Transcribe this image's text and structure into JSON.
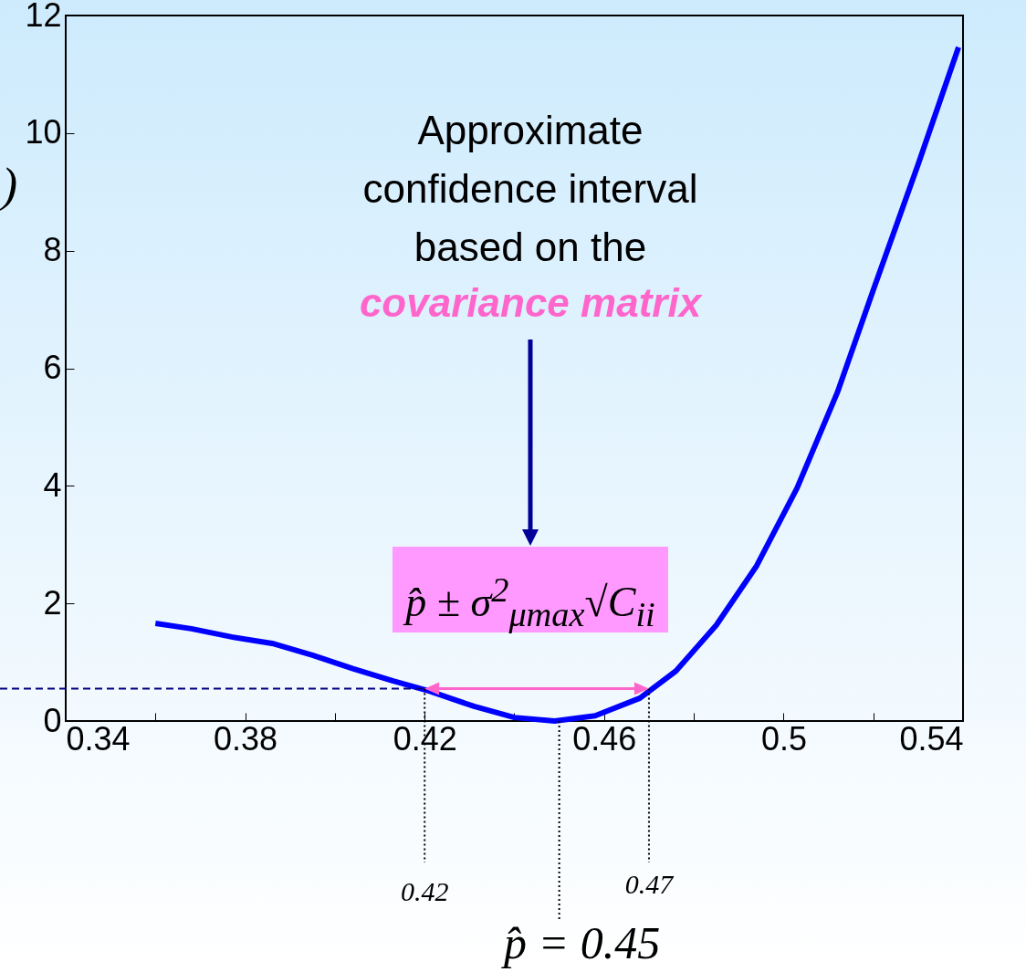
{
  "chart_data": {
    "type": "line",
    "ylabel": ")",
    "x": [
      0.36,
      0.368,
      0.377,
      0.386,
      0.395,
      0.404,
      0.413,
      0.421,
      0.431,
      0.44,
      0.449,
      0.458,
      0.468,
      0.476,
      0.485,
      0.494,
      0.503,
      0.512,
      0.52,
      0.53,
      0.539
    ],
    "series": [
      {
        "color": "#0000ff",
        "values": [
          1.66,
          1.57,
          1.43,
          1.32,
          1.12,
          0.89,
          0.68,
          0.51,
          0.25,
          0.06,
          0,
          0.09,
          0.39,
          0.85,
          1.63,
          2.64,
          3.96,
          5.59,
          7.33,
          9.47,
          11.46
        ]
      }
    ],
    "xlim": [
      0.34,
      0.54
    ],
    "xticks": [
      0.34,
      {
        "value": 0.36,
        "label": null
      },
      0.38,
      {
        "value": 0.4,
        "label": null
      },
      0.42,
      {
        "value": 0.44,
        "label": null
      },
      0.46,
      {
        "value": 0.48,
        "label": null
      },
      0.5,
      {
        "value": 0.52,
        "label": null
      },
      0.54
    ],
    "ylim": [
      0,
      12
    ],
    "yticks": [
      0,
      2,
      4,
      6,
      8,
      10,
      12
    ],
    "ref_lines": [
      {
        "axis": "y",
        "value": 0.55,
        "color": "#000080",
        "line_style": "dashed"
      },
      {
        "axis": "x",
        "value": 0.42,
        "label": "0.42",
        "color": "#000000",
        "line_style": "dotted"
      },
      {
        "axis": "x",
        "value": 0.45,
        "label": "p̂ = 0.45",
        "color": "#000000",
        "line_style": "dotted"
      },
      {
        "axis": "x",
        "value": 0.47,
        "label": "0.47",
        "color": "#000000",
        "line_style": "dotted"
      }
    ],
    "annotations": [
      "Approximate confidence interval based on the",
      "covariance matrix",
      "p̂ ± σ$^{2}$$_{μmax}$√C$_{ii}$"
    ],
    "grid": false,
    "line_style": "solid",
    "marker": "none"
  }
}
